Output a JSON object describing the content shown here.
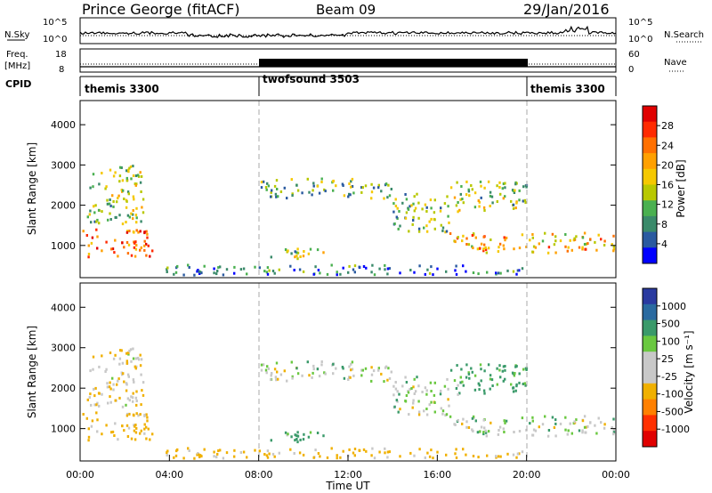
{
  "header": {
    "station": "Prince George (fitACF)",
    "beam": "Beam 09",
    "date": "29/Jan/2016"
  },
  "noise_panel": {
    "left_label": "N.Sky",
    "right_label": "N.Search",
    "left_ticks": [
      "10^5",
      "10^0"
    ],
    "right_ticks": [
      "10^5",
      "10^0"
    ]
  },
  "freq_panel": {
    "left_label_1": "Freq.",
    "left_label_2": "[MHz]",
    "left_ticks": [
      "18",
      "8"
    ],
    "right_label": "Nave",
    "right_ticks": [
      "60",
      "0"
    ]
  },
  "cpid": {
    "label": "CPID",
    "segments": [
      {
        "name": "themis 3300",
        "start": 0,
        "end": 8
      },
      {
        "name": "twofsound 3503",
        "start": 8,
        "end": 20
      },
      {
        "name": "themis 3300",
        "start": 20,
        "end": 24
      }
    ]
  },
  "power_panel": {
    "ylabel": "Slant Range [km]",
    "yticks": [
      "4000",
      "3000",
      "2000",
      "1000"
    ],
    "colorbar_label": "Power [dB]",
    "colorbar_ticks": [
      "28",
      "24",
      "20",
      "16",
      "12",
      "8",
      "4"
    ],
    "colors": [
      "#e00000",
      "#ff2a00",
      "#ff7000",
      "#ffa000",
      "#f5c800",
      "#b8c800",
      "#4ab050",
      "#3a8a6a",
      "#2a5aa0",
      "#0000ff"
    ]
  },
  "velocity_panel": {
    "ylabel": "Slant Range [km]",
    "yticks": [
      "4000",
      "3000",
      "2000",
      "1000"
    ],
    "colorbar_label": "Velocity [m s⁻¹]",
    "colorbar_ticks": [
      "1000",
      "500",
      "100",
      "25",
      "-25",
      "-100",
      "-500",
      "-1000"
    ],
    "colors": [
      "#2a3aa0",
      "#2a6aa0",
      "#3a9a6a",
      "#6ac840",
      "#c8c8c8",
      "#c8c8c8",
      "#f0b000",
      "#ff8000",
      "#ff3000",
      "#e00000"
    ]
  },
  "x_axis": {
    "ticks": [
      "00:00",
      "04:00",
      "08:00",
      "12:00",
      "16:00",
      "20:00",
      "00:00"
    ],
    "label": "Time UT"
  },
  "chart_data": {
    "type": "heatmap",
    "title": "Prince George (fitACF)",
    "xlabel": "Time UT",
    "ylabel": "Slant Range [km]",
    "xlim_hours": [
      0,
      24
    ],
    "ylim_km": [
      200,
      4600
    ],
    "power_scale_db": [
      0,
      30
    ],
    "velocity_scale_ms": [
      -1000,
      1000
    ],
    "mode_changes_hours": [
      8,
      20
    ],
    "echo_regions": [
      {
        "t0": 0.1,
        "t1": 3.2,
        "r0": 700,
        "r1": 1400,
        "power": 25,
        "velocity": -100
      },
      {
        "t0": 0.3,
        "t1": 2.8,
        "r0": 1500,
        "r1": 3000,
        "power": 14,
        "velocity": -50
      },
      {
        "t0": 8.0,
        "t1": 14.0,
        "r0": 2150,
        "r1": 2650,
        "power": 12,
        "velocity": 0
      },
      {
        "t0": 14.0,
        "t1": 16.5,
        "r0": 1300,
        "r1": 2300,
        "power": 12,
        "velocity": 0
      },
      {
        "t0": 16.5,
        "t1": 24.0,
        "r0": 800,
        "r1": 1300,
        "power": 20,
        "velocity": 0
      },
      {
        "t0": 16.5,
        "t1": 20.0,
        "r0": 1800,
        "r1": 2600,
        "power": 14,
        "velocity": 100
      },
      {
        "t0": 8.5,
        "t1": 11.0,
        "r0": 650,
        "r1": 950,
        "power": 14,
        "velocity": 100
      },
      {
        "t0": 3.5,
        "t1": 20.0,
        "r0": 250,
        "r1": 500,
        "power": 8,
        "velocity": -100
      }
    ]
  }
}
